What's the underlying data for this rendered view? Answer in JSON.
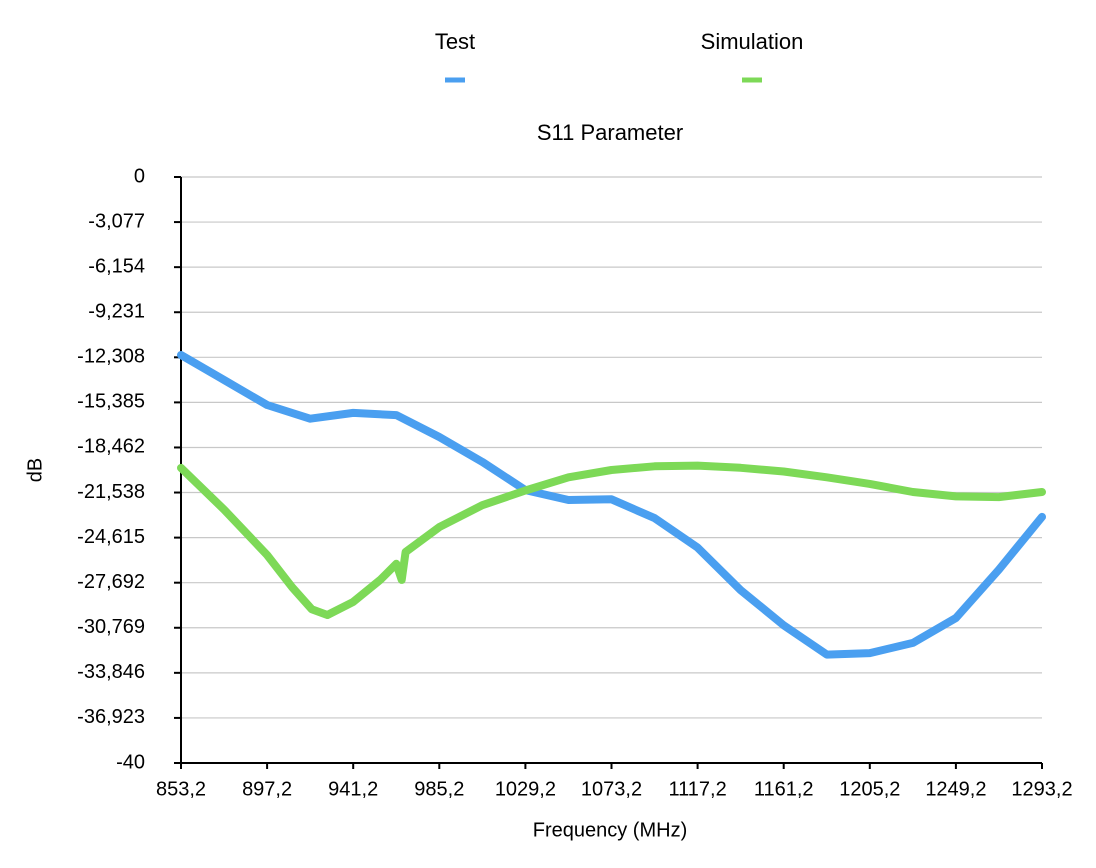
{
  "chart_data": {
    "type": "line",
    "title": "S11 Parameter",
    "x_label": "Frequency (MHz)",
    "y_label": "dB",
    "xlim": [
      853.2,
      1293.2
    ],
    "xticks": [
      {
        "value": 853.2,
        "label": "853,2"
      },
      {
        "value": 897.2,
        "label": "897,2"
      },
      {
        "value": 941.2,
        "label": "941,2"
      },
      {
        "value": 985.2,
        "label": "985,2"
      },
      {
        "value": 1029.2,
        "label": "1029,2"
      },
      {
        "value": 1073.2,
        "label": "1073,2"
      },
      {
        "value": 1117.2,
        "label": "1117,2"
      },
      {
        "value": 1161.2,
        "label": "1161,2"
      },
      {
        "value": 1205.2,
        "label": "1205,2"
      },
      {
        "value": 1249.2,
        "label": "1249,2"
      },
      {
        "value": 1293.2,
        "label": "1293,2"
      }
    ],
    "ylim": [
      -40,
      0
    ],
    "yticks": [
      0,
      {
        "value": -3.077,
        "label": "-3,077"
      },
      {
        "value": -6.154,
        "label": "-6,154"
      },
      {
        "value": -9.231,
        "label": "-9,231"
      },
      {
        "value": -12.308,
        "label": "-12,308"
      },
      {
        "value": -15.385,
        "label": "-15,385"
      },
      {
        "value": -18.462,
        "label": "-18,462"
      },
      {
        "value": -21.538,
        "label": "-21,538"
      },
      {
        "value": -24.615,
        "label": "-24,615"
      },
      {
        "value": -27.692,
        "label": "-27,692"
      },
      {
        "value": -30.769,
        "label": "-30,769"
      },
      {
        "value": -33.846,
        "label": "-33,846"
      },
      {
        "value": -36.923,
        "label": "-36,923"
      },
      -40
    ],
    "grid": true,
    "series": [
      {
        "name": "Test",
        "color": "#4a9ff0",
        "x": [
          853.2,
          875.2,
          897.2,
          919.2,
          941.2,
          963.2,
          985.2,
          1007.2,
          1029.2,
          1051.2,
          1073.2,
          1095.2,
          1117.2,
          1139.2,
          1161.2,
          1183.2,
          1205.2,
          1227.2,
          1249.2,
          1271.2,
          1293.2
        ],
        "values": [
          -12.15,
          -13.86,
          -15.56,
          -16.5,
          -16.1,
          -16.25,
          -17.75,
          -19.45,
          -21.37,
          -22.05,
          -22.0,
          -23.28,
          -25.3,
          -28.2,
          -30.6,
          -32.6,
          -32.5,
          -31.8,
          -30.1,
          -26.8,
          -23.2
        ]
      },
      {
        "name": "Simulation",
        "color": "#7dd957",
        "x": [
          853.2,
          875.2,
          897.2,
          910,
          920,
          928,
          941.2,
          955,
          963.2,
          966,
          968,
          985.2,
          1007.2,
          1029.2,
          1051.2,
          1073.2,
          1095.2,
          1117.2,
          1139.2,
          1161.2,
          1183.2,
          1205.2,
          1227.2,
          1249.2,
          1271.2,
          1293.2
        ],
        "values": [
          -19.86,
          -22.7,
          -25.8,
          -28.0,
          -29.5,
          -29.9,
          -29.0,
          -27.5,
          -26.4,
          -27.5,
          -25.6,
          -23.9,
          -22.4,
          -21.4,
          -20.5,
          -20.0,
          -19.75,
          -19.7,
          -19.85,
          -20.1,
          -20.5,
          -20.95,
          -21.5,
          -21.8,
          -21.85,
          -21.5
        ]
      }
    ]
  }
}
